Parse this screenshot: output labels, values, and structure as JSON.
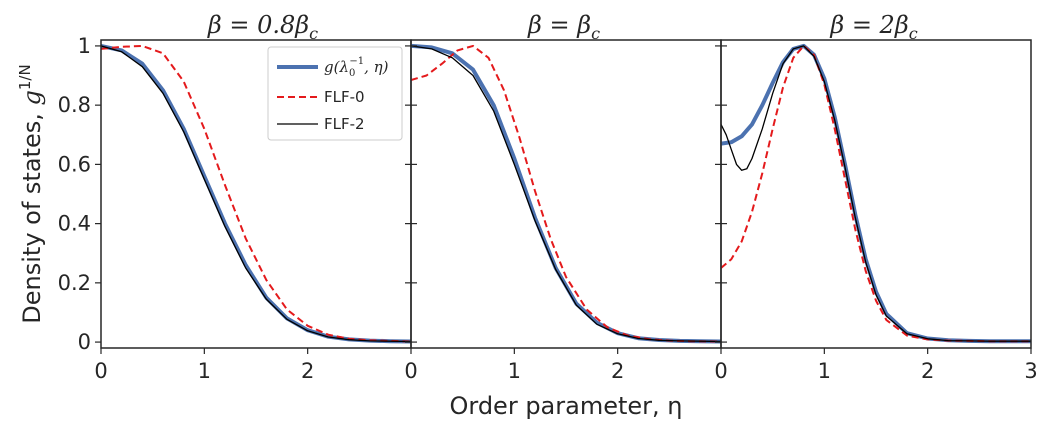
{
  "chart_data": [
    {
      "type": "line",
      "title": "β = 0.8β_c",
      "title_parts": [
        "β = 0.8β",
        "c"
      ],
      "xlabel": "",
      "ylabel": "Density of states, g^{1/N}",
      "ylabel_parts": [
        "Density of states, ",
        "g",
        "1/N"
      ],
      "xlim": [
        0,
        3
      ],
      "ylim": [
        -0.02,
        1.02
      ],
      "xticks": [
        "0",
        "1",
        "2"
      ],
      "yticks": [
        "0",
        "0.2",
        "0.4",
        "0.6",
        "0.8",
        "1"
      ],
      "legend": {
        "placement": "top-right",
        "entries": [
          {
            "label_parts": [
              "g(λ",
              "0",
              "−1",
              ", η)"
            ],
            "series": 0
          },
          {
            "label": "FLF-0",
            "series": 1
          },
          {
            "label": "FLF-2",
            "series": 2
          }
        ]
      },
      "series": [
        {
          "name": "g(λ_0^{-1}, η)",
          "color": "#4c72b0",
          "style": "solid-thick",
          "x": [
            0,
            0.2,
            0.4,
            0.6,
            0.8,
            1.0,
            1.2,
            1.4,
            1.6,
            1.8,
            2.0,
            2.2,
            2.4,
            2.6,
            2.8,
            3.0
          ],
          "y": [
            1.0,
            0.985,
            0.94,
            0.85,
            0.72,
            0.56,
            0.4,
            0.26,
            0.15,
            0.08,
            0.04,
            0.018,
            0.009,
            0.005,
            0.003,
            0.002
          ]
        },
        {
          "name": "FLF-0",
          "color": "#e41a1c",
          "style": "dashed",
          "x": [
            0,
            0.2,
            0.4,
            0.6,
            0.8,
            1.0,
            1.2,
            1.4,
            1.6,
            1.8,
            2.0,
            2.2,
            2.4,
            2.6,
            2.8,
            3.0
          ],
          "y": [
            0.99,
            0.997,
            1.0,
            0.975,
            0.88,
            0.72,
            0.53,
            0.35,
            0.21,
            0.11,
            0.055,
            0.025,
            0.011,
            0.006,
            0.004,
            0.002
          ]
        },
        {
          "name": "FLF-2",
          "color": "#000000",
          "style": "thin",
          "x": [
            0,
            0.2,
            0.4,
            0.6,
            0.8,
            1.0,
            1.2,
            1.4,
            1.6,
            1.8,
            2.0,
            2.2,
            2.4,
            2.6,
            2.8,
            3.0
          ],
          "y": [
            1.0,
            0.98,
            0.93,
            0.84,
            0.71,
            0.55,
            0.39,
            0.25,
            0.145,
            0.077,
            0.038,
            0.017,
            0.008,
            0.004,
            0.003,
            0.002
          ]
        }
      ]
    },
    {
      "type": "line",
      "title": "β = β_c",
      "title_parts": [
        "β = β",
        "c"
      ],
      "xlabel": "Order parameter, η",
      "ylabel": "",
      "xlim": [
        0,
        3
      ],
      "ylim": [
        -0.02,
        1.02
      ],
      "xticks": [
        "0",
        "1",
        "2"
      ],
      "yticks": [],
      "series": [
        {
          "name": "g(λ_0^{-1}, η)",
          "color": "#4c72b0",
          "style": "solid-thick",
          "x": [
            0,
            0.2,
            0.4,
            0.6,
            0.8,
            1.0,
            1.2,
            1.4,
            1.6,
            1.8,
            2.0,
            2.2,
            2.4,
            2.6,
            2.8,
            3.0
          ],
          "y": [
            1.0,
            0.995,
            0.975,
            0.92,
            0.8,
            0.62,
            0.42,
            0.25,
            0.13,
            0.065,
            0.03,
            0.013,
            0.007,
            0.004,
            0.003,
            0.002
          ]
        },
        {
          "name": "FLF-0",
          "color": "#e41a1c",
          "style": "dashed",
          "x": [
            0,
            0.15,
            0.3,
            0.45,
            0.6,
            0.75,
            0.9,
            1.05,
            1.2,
            1.35,
            1.5,
            1.7,
            1.9,
            2.1,
            2.3,
            2.5,
            2.7,
            3.0
          ],
          "y": [
            0.885,
            0.9,
            0.94,
            0.985,
            1.0,
            0.96,
            0.85,
            0.69,
            0.51,
            0.35,
            0.22,
            0.11,
            0.05,
            0.022,
            0.01,
            0.005,
            0.003,
            0.002
          ]
        },
        {
          "name": "FLF-2",
          "color": "#000000",
          "style": "thin",
          "x": [
            0,
            0.2,
            0.4,
            0.6,
            0.8,
            1.0,
            1.2,
            1.4,
            1.6,
            1.8,
            2.0,
            2.2,
            2.4,
            2.6,
            2.8,
            3.0
          ],
          "y": [
            1.0,
            0.99,
            0.96,
            0.9,
            0.78,
            0.6,
            0.41,
            0.245,
            0.125,
            0.06,
            0.028,
            0.012,
            0.006,
            0.004,
            0.003,
            0.002
          ]
        }
      ]
    },
    {
      "type": "line",
      "title": "β = 2β_c",
      "title_parts": [
        "β = 2β",
        "c"
      ],
      "xlabel": "",
      "ylabel": "",
      "xlim": [
        0,
        3
      ],
      "ylim": [
        -0.02,
        1.02
      ],
      "xticks": [
        "0",
        "1",
        "2",
        "3"
      ],
      "yticks": [],
      "series": [
        {
          "name": "g(λ_0^{-1}, η)",
          "color": "#4c72b0",
          "style": "solid-thick",
          "x": [
            0,
            0.1,
            0.2,
            0.3,
            0.4,
            0.5,
            0.6,
            0.7,
            0.8,
            0.9,
            1.0,
            1.1,
            1.2,
            1.3,
            1.4,
            1.5,
            1.6,
            1.8,
            2.0,
            2.2,
            2.4,
            2.6,
            2.8,
            3.0
          ],
          "y": [
            0.67,
            0.675,
            0.695,
            0.735,
            0.8,
            0.875,
            0.945,
            0.99,
            1.0,
            0.97,
            0.89,
            0.76,
            0.6,
            0.43,
            0.28,
            0.17,
            0.095,
            0.03,
            0.012,
            0.006,
            0.004,
            0.003,
            0.003,
            0.003
          ]
        },
        {
          "name": "FLF-0",
          "color": "#e41a1c",
          "style": "dashed",
          "x": [
            0,
            0.1,
            0.2,
            0.3,
            0.4,
            0.5,
            0.6,
            0.7,
            0.8,
            0.9,
            1.0,
            1.1,
            1.2,
            1.3,
            1.4,
            1.5,
            1.6,
            1.8,
            2.0,
            2.2,
            2.4,
            2.6,
            2.8,
            3.0
          ],
          "y": [
            0.25,
            0.28,
            0.34,
            0.44,
            0.57,
            0.72,
            0.86,
            0.96,
            1.0,
            0.97,
            0.87,
            0.72,
            0.55,
            0.38,
            0.24,
            0.14,
            0.075,
            0.022,
            0.009,
            0.005,
            0.004,
            0.003,
            0.003,
            0.003
          ]
        },
        {
          "name": "FLF-2",
          "color": "#000000",
          "style": "thin",
          "x": [
            0,
            0.05,
            0.1,
            0.15,
            0.2,
            0.25,
            0.3,
            0.4,
            0.5,
            0.6,
            0.7,
            0.8,
            0.9,
            1.0,
            1.1,
            1.2,
            1.3,
            1.4,
            1.5,
            1.6,
            1.8,
            2.0,
            2.2,
            2.4,
            2.6,
            2.8,
            3.0
          ],
          "y": [
            0.735,
            0.7,
            0.65,
            0.6,
            0.58,
            0.585,
            0.62,
            0.72,
            0.84,
            0.94,
            0.99,
            1.0,
            0.965,
            0.88,
            0.75,
            0.59,
            0.42,
            0.27,
            0.16,
            0.088,
            0.028,
            0.011,
            0.005,
            0.004,
            0.003,
            0.003,
            0.003
          ]
        }
      ]
    }
  ]
}
